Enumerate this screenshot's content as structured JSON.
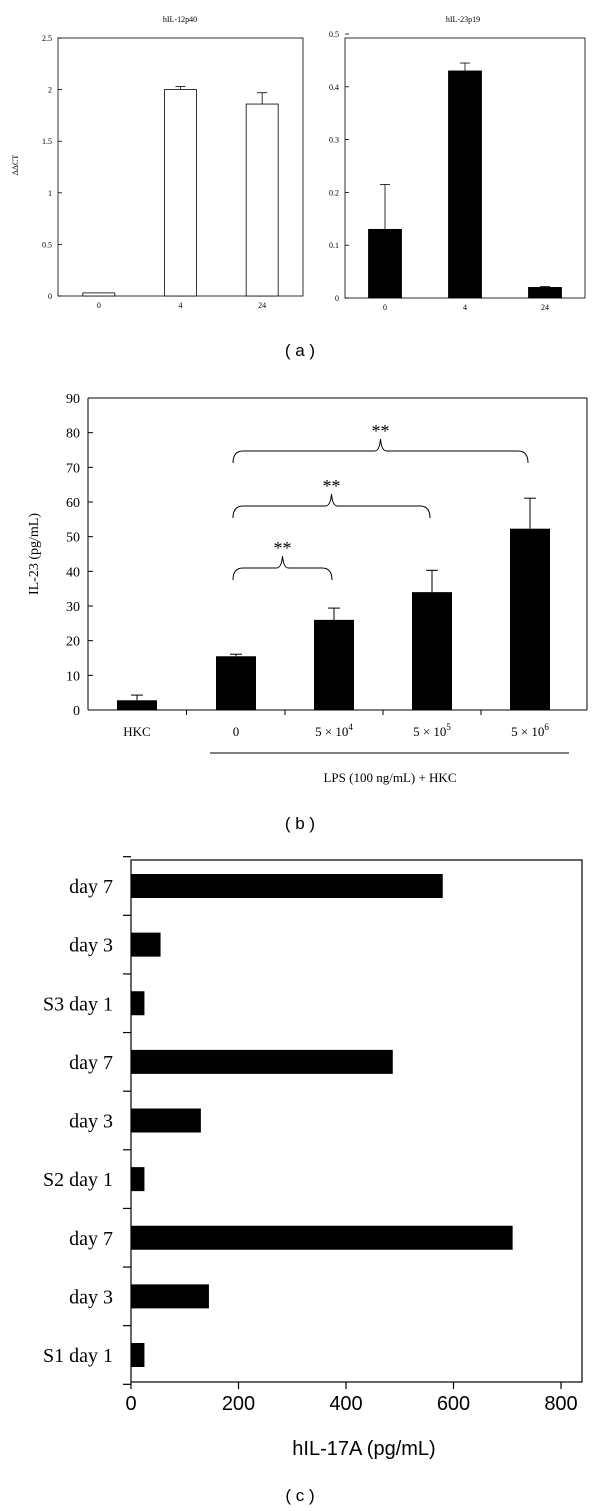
{
  "panel_labels": [
    "( a )",
    "( b )",
    "( c )"
  ],
  "chart_data": [
    {
      "id": "a1",
      "type": "bar",
      "title": "hIL-12p40",
      "ylabel": "ΔΔCT",
      "xlabel": "",
      "categories": [
        "0",
        "4",
        "24"
      ],
      "values": [
        0.03,
        2.0,
        1.86
      ],
      "errors": [
        0.0,
        0.03,
        0.11
      ],
      "ylim": [
        0,
        2.5
      ],
      "yticks": [
        "0",
        "0.5",
        "1",
        "1.5",
        "2",
        "2.5"
      ],
      "bar_fill": "#ffffff",
      "bar_stroke": "#000000"
    },
    {
      "id": "a2",
      "type": "bar",
      "title": "hIL-23p19",
      "ylabel": "",
      "xlabel": "",
      "categories": [
        "0",
        "4",
        "24"
      ],
      "values": [
        0.13,
        0.43,
        0.02
      ],
      "errors": [
        0.085,
        0.015,
        0.002
      ],
      "ylim": [
        0,
        0.5
      ],
      "yticks": [
        "0",
        "0.1",
        "0.2",
        "0.3",
        "0.4",
        "0.5"
      ],
      "bar_fill": "#000000",
      "bar_stroke": "#000000"
    },
    {
      "id": "b",
      "type": "bar",
      "title": "",
      "ylabel": "IL-23 (pg/mL)",
      "xlabel": "LPS (100 ng/mL) + HKC",
      "categories": [
        "HKC",
        "0",
        "5 × 10",
        "5 × 10",
        "5 × 10"
      ],
      "category_exponents": [
        "",
        "",
        "4",
        "5",
        "6"
      ],
      "values": [
        2.8,
        15.5,
        26.0,
        34.0,
        52.3
      ],
      "errors": [
        1.5,
        0.6,
        3.4,
        6.3,
        8.8
      ],
      "ylim": [
        0,
        90
      ],
      "yticks": [
        "0",
        "10",
        "20",
        "30",
        "40",
        "50",
        "60",
        "70",
        "80",
        "90"
      ],
      "significance": [
        {
          "from": 1,
          "to": 2,
          "label": "**"
        },
        {
          "from": 1,
          "to": 3,
          "label": "**"
        },
        {
          "from": 1,
          "to": 4,
          "label": "**"
        }
      ],
      "bar_fill": "#000000"
    },
    {
      "id": "c",
      "type": "bar",
      "orientation": "horizontal",
      "title": "",
      "xlabel": "hIL-17A (pg/mL)",
      "ylabel": "",
      "categories": [
        "S1 day 1",
        "day 3",
        "day 7",
        "S2 day 1",
        "day 3",
        "day 7",
        "S3  day 1",
        "day 3",
        "day 7"
      ],
      "values": [
        25,
        145,
        710,
        25,
        130,
        487,
        25,
        55,
        580
      ],
      "xlim": [
        0,
        800
      ],
      "xticks": [
        "0",
        "200",
        "400",
        "600",
        "800"
      ],
      "bar_fill": "#000000"
    }
  ]
}
